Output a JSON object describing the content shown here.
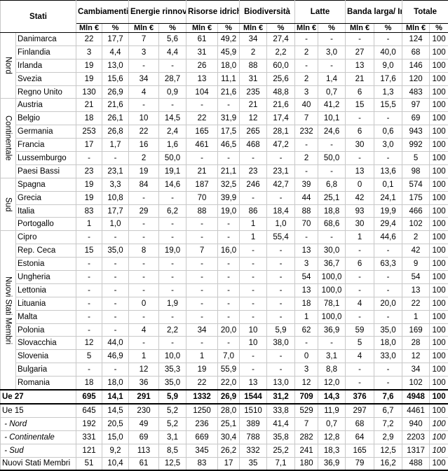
{
  "header": {
    "stati": "Stati",
    "columns": [
      "Cambiamenti climatici",
      "Energie rinnovabili",
      "Risorse idriche",
      "Biodiversità",
      "Latte",
      "Banda larga/ Innovazione",
      "Totale"
    ],
    "unit_mln": "Mln €",
    "unit_pct": "%"
  },
  "groups": [
    {
      "label": "Nord",
      "rows": [
        {
          "name": "Danimarca",
          "values": [
            "22",
            "17,7",
            "7",
            "5,6",
            "61",
            "49,2",
            "34",
            "27,4",
            "-",
            "-",
            "-",
            "-",
            "124",
            "100"
          ]
        },
        {
          "name": "Finlandia",
          "values": [
            "3",
            "4,4",
            "3",
            "4,4",
            "31",
            "45,9",
            "2",
            "2,2",
            "2",
            "3,0",
            "27",
            "40,0",
            "68",
            "100"
          ]
        },
        {
          "name": "Irlanda",
          "values": [
            "19",
            "13,0",
            "-",
            "-",
            "26",
            "18,0",
            "88",
            "60,0",
            "-",
            "-",
            "13",
            "9,0",
            "146",
            "100"
          ]
        },
        {
          "name": "Svezia",
          "values": [
            "19",
            "15,6",
            "34",
            "28,7",
            "13",
            "11,1",
            "31",
            "25,6",
            "2",
            "1,4",
            "21",
            "17,6",
            "120",
            "100"
          ]
        },
        {
          "name": "Regno Unito",
          "values": [
            "130",
            "26,9",
            "4",
            "0,9",
            "104",
            "21,6",
            "235",
            "48,8",
            "3",
            "0,7",
            "6",
            "1,3",
            "483",
            "100"
          ]
        }
      ]
    },
    {
      "label": "Continentale",
      "rows": [
        {
          "name": "Austria",
          "values": [
            "21",
            "21,6",
            "-",
            "-",
            "-",
            "-",
            "21",
            "21,6",
            "40",
            "41,2",
            "15",
            "15,5",
            "97",
            "100"
          ]
        },
        {
          "name": "Belgio",
          "values": [
            "18",
            "26,1",
            "10",
            "14,5",
            "22",
            "31,9",
            "12",
            "17,4",
            "7",
            "10,1",
            "-",
            "-",
            "69",
            "100"
          ]
        },
        {
          "name": "Germania",
          "values": [
            "253",
            "26,8",
            "22",
            "2,4",
            "165",
            "17,5",
            "265",
            "28,1",
            "232",
            "24,6",
            "6",
            "0,6",
            "943",
            "100"
          ]
        },
        {
          "name": "Francia",
          "values": [
            "17",
            "1,7",
            "16",
            "1,6",
            "461",
            "46,5",
            "468",
            "47,2",
            "-",
            "-",
            "30",
            "3,0",
            "992",
            "100"
          ]
        },
        {
          "name": "Lussemburgo",
          "values": [
            "-",
            "-",
            "2",
            "50,0",
            "-",
            "-",
            "-",
            "-",
            "2",
            "50,0",
            "-",
            "-",
            "5",
            "100"
          ]
        },
        {
          "name": "Paesi Bassi",
          "values": [
            "23",
            "23,1",
            "19",
            "19,1",
            "21",
            "21,1",
            "23",
            "23,1",
            "-",
            "-",
            "13",
            "13,6",
            "98",
            "100"
          ]
        }
      ]
    },
    {
      "label": "Sud",
      "rows": [
        {
          "name": "Spagna",
          "values": [
            "19",
            "3,3",
            "84",
            "14,6",
            "187",
            "32,5",
            "246",
            "42,7",
            "39",
            "6,8",
            "0",
            "0,1",
            "574",
            "100"
          ]
        },
        {
          "name": "Grecia",
          "values": [
            "19",
            "10,8",
            "-",
            "-",
            "70",
            "39,9",
            "-",
            "-",
            "44",
            "25,1",
            "42",
            "24,1",
            "175",
            "100"
          ]
        },
        {
          "name": "Italia",
          "values": [
            "83",
            "17,7",
            "29",
            "6,2",
            "88",
            "19,0",
            "86",
            "18,4",
            "88",
            "18,8",
            "93",
            "19,9",
            "466",
            "100"
          ]
        },
        {
          "name": "Portogallo",
          "values": [
            "1",
            "1,0",
            "-",
            "-",
            "-",
            "-",
            "1",
            "1,0",
            "70",
            "68,6",
            "30",
            "29,4",
            "102",
            "100"
          ]
        }
      ]
    },
    {
      "label": "Nuovi Stati Membri",
      "rows": [
        {
          "name": "Cipro",
          "values": [
            "-",
            "-",
            "-",
            "-",
            "-",
            "-",
            "1",
            "55,4",
            "-",
            "-",
            "1",
            "44,6",
            "2",
            "100"
          ]
        },
        {
          "name": "Rep. Ceca",
          "values": [
            "15",
            "35,0",
            "8",
            "19,0",
            "7",
            "16,0",
            "-",
            "-",
            "13",
            "30,0",
            "-",
            "-",
            "42",
            "100"
          ]
        },
        {
          "name": "Estonia",
          "values": [
            "-",
            "-",
            "-",
            "-",
            "-",
            "-",
            "-",
            "-",
            "3",
            "36,7",
            "6",
            "63,3",
            "9",
            "100"
          ]
        },
        {
          "name": "Ungheria",
          "values": [
            "-",
            "-",
            "-",
            "-",
            "-",
            "-",
            "-",
            "-",
            "54",
            "100,0",
            "-",
            "-",
            "54",
            "100"
          ]
        },
        {
          "name": "Lettonia",
          "values": [
            "-",
            "-",
            "-",
            "-",
            "-",
            "-",
            "-",
            "-",
            "13",
            "100,0",
            "-",
            "-",
            "13",
            "100"
          ]
        },
        {
          "name": "Lituania",
          "values": [
            "-",
            "-",
            "0",
            "1,9",
            "-",
            "-",
            "-",
            "-",
            "18",
            "78,1",
            "4",
            "20,0",
            "22",
            "100"
          ]
        },
        {
          "name": "Malta",
          "values": [
            "-",
            "-",
            "-",
            "-",
            "-",
            "-",
            "-",
            "-",
            "1",
            "100,0",
            "-",
            "-",
            "1",
            "100"
          ]
        },
        {
          "name": "Polonia",
          "values": [
            "-",
            "-",
            "4",
            "2,2",
            "34",
            "20,0",
            "10",
            "5,9",
            "62",
            "36,9",
            "59",
            "35,0",
            "169",
            "100"
          ]
        },
        {
          "name": "Slovacchia",
          "values": [
            "12",
            "44,0",
            "-",
            "-",
            "-",
            "-",
            "10",
            "38,0",
            "-",
            "-",
            "5",
            "18,0",
            "28",
            "100"
          ]
        },
        {
          "name": "Slovenia",
          "values": [
            "5",
            "46,9",
            "1",
            "10,0",
            "1",
            "7,0",
            "-",
            "-",
            "0",
            "3,1",
            "4",
            "33,0",
            "12",
            "100"
          ]
        },
        {
          "name": "Bulgaria",
          "values": [
            "-",
            "-",
            "12",
            "35,3",
            "19",
            "55,9",
            "-",
            "-",
            "3",
            "8,8",
            "-",
            "-",
            "34",
            "100"
          ]
        },
        {
          "name": "Romania",
          "values": [
            "18",
            "18,0",
            "36",
            "35,0",
            "22",
            "22,0",
            "13",
            "13,0",
            "12",
            "12,0",
            "-",
            "-",
            "102",
            "100"
          ]
        }
      ]
    }
  ],
  "summary": [
    {
      "name": "Ue 27",
      "style": "bold",
      "values": [
        "695",
        "14,1",
        "291",
        "5,9",
        "1332",
        "26,9",
        "1544",
        "31,2",
        "709",
        "14,3",
        "376",
        "7,6",
        "4948",
        "100"
      ]
    },
    {
      "name": "Ue 15",
      "style": "normal",
      "values": [
        "645",
        "14,5",
        "230",
        "5,2",
        "1250",
        "28,0",
        "1510",
        "33,8",
        "529",
        "11,9",
        "297",
        "6,7",
        "4461",
        "100"
      ]
    },
    {
      "name": " - Nord",
      "style": "italic",
      "values": [
        "192",
        "20,5",
        "49",
        "5,2",
        "236",
        "25,1",
        "389",
        "41,4",
        "7",
        "0,7",
        "68",
        "7,2",
        "940",
        "100"
      ]
    },
    {
      "name": " - Continentale",
      "style": "italic",
      "values": [
        "331",
        "15,0",
        "69",
        "3,1",
        "669",
        "30,4",
        "788",
        "35,8",
        "282",
        "12,8",
        "64",
        "2,9",
        "2203",
        "100"
      ]
    },
    {
      "name": " - Sud",
      "style": "italic",
      "values": [
        "121",
        "9,2",
        "113",
        "8,5",
        "345",
        "26,2",
        "332",
        "25,2",
        "241",
        "18,3",
        "165",
        "12,5",
        "1317",
        "100"
      ]
    },
    {
      "name": "Nuovi Stati Membri",
      "style": "normal",
      "values": [
        "51",
        "10,4",
        "61",
        "12,5",
        "83",
        "17",
        "35",
        "7,1",
        "180",
        "36,9",
        "79",
        "16,2",
        "488",
        "100"
      ]
    }
  ]
}
